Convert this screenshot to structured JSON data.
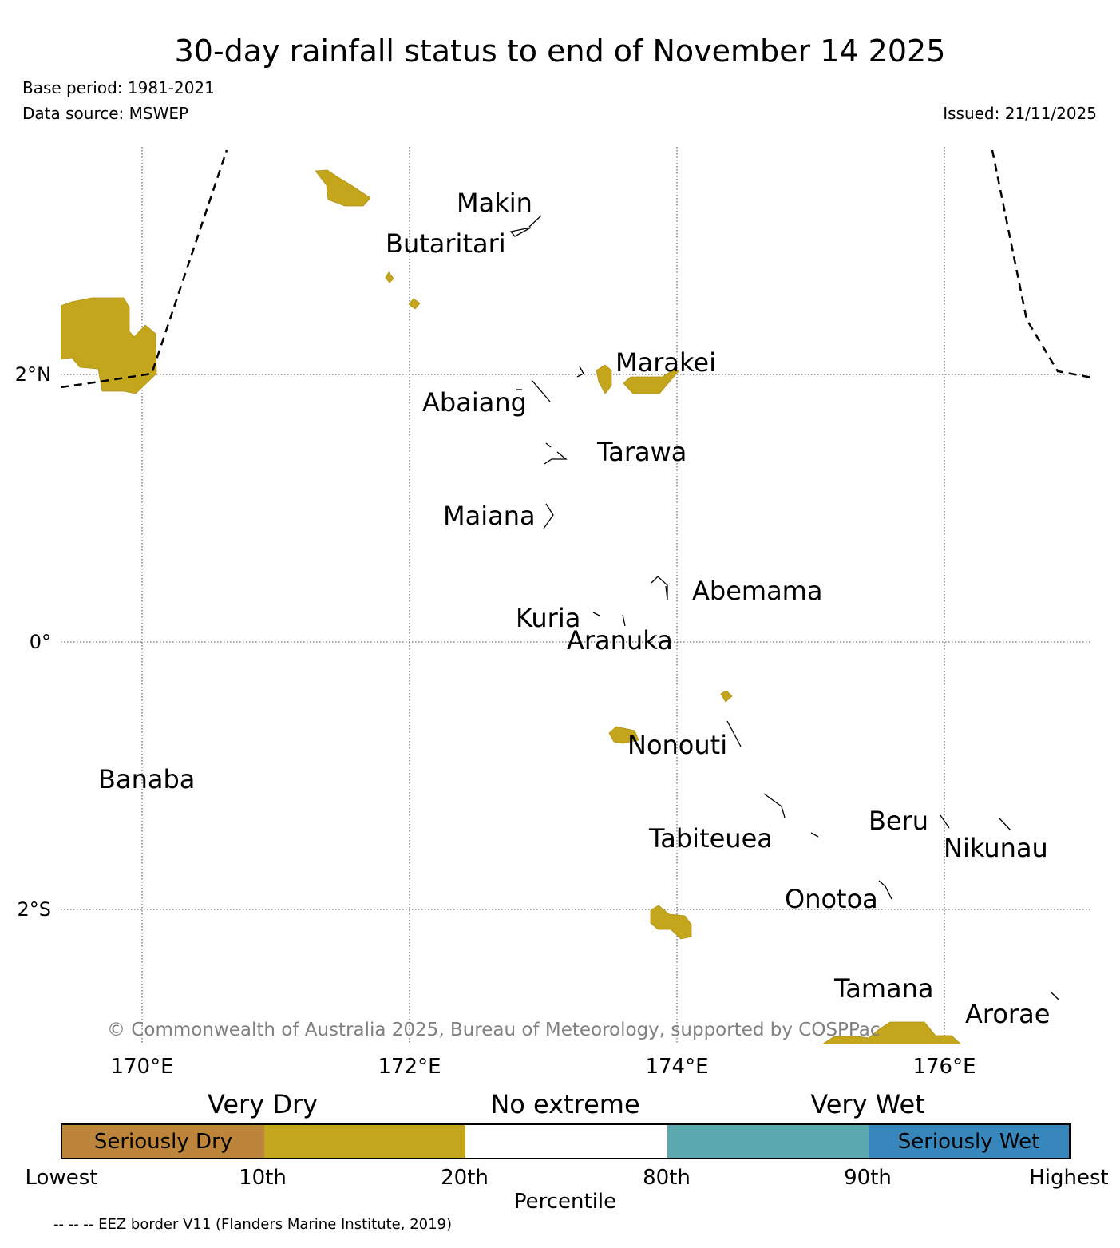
{
  "title": "30-day rainfall status to end of November 14 2025",
  "base_period": "Base period: 1981-2021",
  "data_source": "Data source: MSWEP",
  "issued": "Issued: 21/11/2025",
  "copyright": "© Commonwealth of Australia 2025, Bureau of Meteorology, supported by COSPPac",
  "eez_note": "-- -- -- EEZ border V11 (Flanders Marine Institute, 2019)",
  "map": {
    "longitude_labels": [
      "170°E",
      "172°E",
      "174°E",
      "176°E"
    ],
    "latitude_labels": [
      "2°N",
      "0°",
      "2°S"
    ],
    "island_labels": {
      "makin": "Makin",
      "butaritari": "Butaritari",
      "marakei": "Marakei",
      "abaiang": "Abaiang",
      "tarawa": "Tarawa",
      "maiana": "Maiana",
      "abemama": "Abemama",
      "kuria": "Kuria",
      "aranuka": "Aranuka",
      "nonouti": "Nonouti",
      "banaba": "Banaba",
      "beru": "Beru",
      "tabiteuea": "Tabiteuea",
      "nikunau": "Nikunau",
      "onotoa": "Onotoa",
      "tamana": "Tamana",
      "arorae": "Arorae"
    }
  },
  "legend": {
    "categories": [
      "Very Dry",
      "No extreme",
      "Very Wet"
    ],
    "segments": [
      {
        "label": "Seriously Dry",
        "color": "#bd843c"
      },
      {
        "label": "",
        "color": "#c4a61d"
      },
      {
        "label": "",
        "color": "#ffffff"
      },
      {
        "label": "",
        "color": "#5ba9ae"
      },
      {
        "label": "Seriously Wet",
        "color": "#3787bc"
      }
    ],
    "ticks": [
      "Lowest",
      "10th",
      "20th",
      "80th",
      "90th",
      "Highest"
    ],
    "axis_label": "Percentile"
  },
  "colors": {
    "very_dry": "#c4a61d",
    "seriously_dry": "#bd843c",
    "very_wet": "#5ba9ae",
    "seriously_wet": "#3787bc",
    "grid": "#444444",
    "copyright_text": "#808080"
  }
}
